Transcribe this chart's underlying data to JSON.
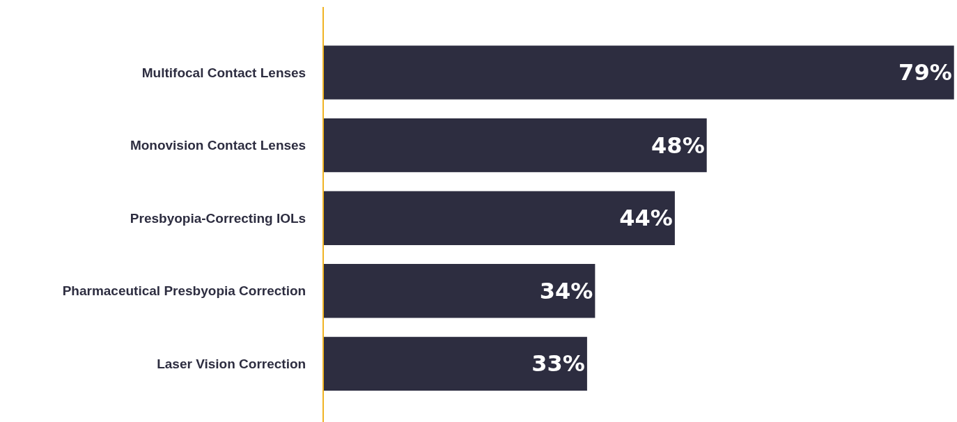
{
  "chart_data": {
    "type": "bar",
    "orientation": "horizontal",
    "categories": [
      "Multifocal Contact Lenses",
      "Monovision Contact Lenses",
      "Presbyopia-Correcting IOLs",
      "Pharmaceutical Presbyopia Correction",
      "Laser Vision Correction"
    ],
    "values": [
      79,
      48,
      44,
      34,
      33
    ],
    "value_labels": [
      "79%",
      "48%",
      "44%",
      "34%",
      "33%"
    ],
    "color": "#2d2d40",
    "xlim": [
      0,
      79.2
    ],
    "grid": false,
    "legend": false,
    "tick_labels": "y"
  }
}
